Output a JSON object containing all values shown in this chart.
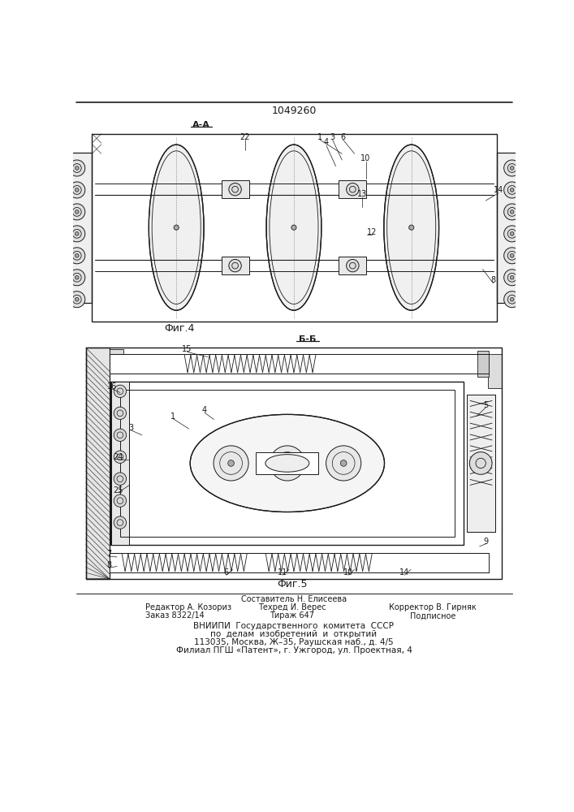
{
  "patent_number": "1049260",
  "fig4_label": "Фиг.4",
  "fig5_label": "Фиг.5",
  "section_aa": "А-А",
  "section_bb": "Б-Б",
  "footer_line1": "Составитель Н. Елисеева",
  "footer_editor": "Редактор А. Козориз",
  "footer_tech": "Техред И. Верес",
  "footer_corrector": "Корректор В. Гирняк",
  "footer_order": "Заказ 8322/14",
  "footer_tirazh": "Тираж 647",
  "footer_podpisnoe": "Подписное",
  "footer_vniip1": "ВНИИПИ  Государственного  комитета  СССР",
  "footer_vniip2": "по  делам  изобретений  и  открытий",
  "footer_vniip3": "113035, Москва, Ж–35, Раушская наб., д. 4/5",
  "footer_vniip4": "Филиал ПГШ «Патент», г. Ужгород, ул. Проектная, 4",
  "bg_color": "#ffffff",
  "line_color": "#1a1a1a",
  "text_color": "#1a1a1a"
}
